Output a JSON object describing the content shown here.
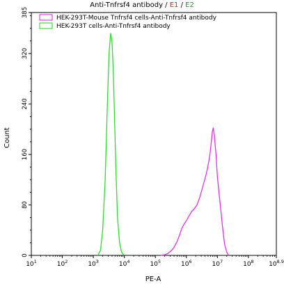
{
  "chart_data": {
    "type": "line",
    "title": {
      "prefix": "Anti-Tnfrsf4 antibody / ",
      "e1": "E1",
      "sep": " / ",
      "e2": "E2"
    },
    "xlabel": "PE-A",
    "ylabel": "Count",
    "x_scale": "log10",
    "xlim": [
      10,
      794328234
    ],
    "ylim": [
      0,
      385
    ],
    "x_ticks": [
      {
        "value": 10,
        "base": "10",
        "exp": "1"
      },
      {
        "value": 100,
        "base": "10",
        "exp": "2"
      },
      {
        "value": 1000,
        "base": "10",
        "exp": "3"
      },
      {
        "value": 10000,
        "base": "10",
        "exp": "4"
      },
      {
        "value": 100000,
        "base": "10",
        "exp": "5"
      },
      {
        "value": 1000000,
        "base": "10",
        "exp": "6"
      },
      {
        "value": 10000000,
        "base": "10",
        "exp": "7"
      },
      {
        "value": 100000000,
        "base": "10",
        "exp": "8"
      },
      {
        "value": 794328234,
        "base": "10",
        "exp": "8.9"
      }
    ],
    "y_ticks": [
      0,
      80,
      160,
      240,
      320,
      385
    ],
    "legend_position": "top-left",
    "series": [
      {
        "name": "HEK-293T-Mouse Tnfrsf4 cells-Anti-Tnfrsf4 antibody",
        "color": "#e62fe6",
        "x": [
          150000,
          200000,
          250000,
          300000,
          350000,
          400000,
          500000,
          600000,
          700000,
          800000,
          1000000,
          1200000,
          1500000,
          1800000,
          2200000,
          2700000,
          3200000,
          3800000,
          4300000,
          4800000,
          5300000,
          5800000,
          6300000,
          6800000,
          7300000,
          8000000,
          9000000,
          10000000,
          11500000,
          13000000,
          15000000,
          17000000,
          20000000,
          23000000
        ],
        "y": [
          0,
          1,
          3,
          6,
          9,
          13,
          22,
          32,
          42,
          48,
          55,
          62,
          70,
          74,
          80,
          92,
          105,
          118,
          128,
          138,
          150,
          162,
          178,
          195,
          202,
          190,
          160,
          125,
          95,
          70,
          40,
          18,
          5,
          0
        ]
      },
      {
        "name": "HEK-293T cells-Anti-Tnfrsf4 antibody",
        "color": "#2fdc2f",
        "x": [
          1400,
          1700,
          2000,
          2400,
          2800,
          3200,
          3600,
          4000,
          4400,
          4800,
          5300,
          6000,
          7000,
          8000,
          9000,
          10000
        ],
        "y": [
          0,
          8,
          40,
          120,
          230,
          320,
          352,
          340,
          290,
          220,
          140,
          60,
          20,
          6,
          2,
          0
        ]
      }
    ]
  }
}
